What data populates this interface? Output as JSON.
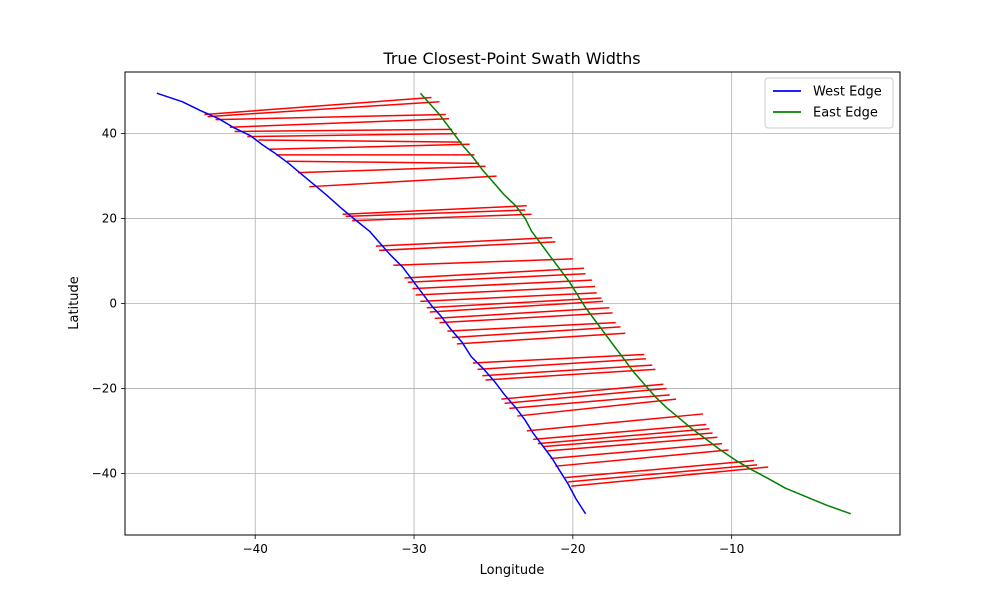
{
  "chart_data": {
    "type": "line",
    "title": "True Closest-Point Swath Widths",
    "xlabel": "Longitude",
    "ylabel": "Latitude",
    "xlim": [
      -48.2,
      0.6
    ],
    "ylim": [
      -54.5,
      54.5
    ],
    "xticks": [
      -40,
      -30,
      -20,
      -10
    ],
    "yticks": [
      -40,
      -20,
      0,
      20,
      40
    ],
    "xtick_labels": [
      "−40",
      "−30",
      "−20",
      "−10"
    ],
    "ytick_labels": [
      "−40",
      "−20",
      "0",
      "20",
      "40"
    ],
    "grid": true,
    "legend_position": "top-right",
    "colors": {
      "west": "#0000ff",
      "east": "#008000",
      "swath": "#ff0000",
      "grid": "#b0b0b0"
    },
    "series": [
      {
        "name": "West Edge",
        "x": [
          -46.2,
          -44.6,
          -43.5,
          -42.3,
          -41.3,
          -40.3,
          -39.6,
          -38.8,
          -37.9,
          -37.2,
          -36.3,
          -35.5,
          -34.6,
          -33.8,
          -32.8,
          -32.1,
          -31.5,
          -30.7,
          -30.1,
          -29.5,
          -28.9,
          -28.3,
          -27.7,
          -27.0,
          -26.4,
          -25.6,
          -24.9,
          -24.3,
          -23.6,
          -23.0,
          -22.5,
          -21.9,
          -21.3,
          -20.8,
          -20.3,
          -19.8,
          -19.2
        ],
        "y": [
          49.5,
          47.5,
          45.5,
          43.5,
          41.3,
          39.5,
          37.5,
          35.5,
          33.0,
          30.8,
          28.0,
          25.5,
          22.5,
          20.0,
          17.0,
          14.0,
          11.5,
          8.5,
          5.5,
          2.5,
          -0.5,
          -3.0,
          -6.0,
          -9.0,
          -12.5,
          -15.5,
          -18.5,
          -21.5,
          -24.5,
          -27.5,
          -30.5,
          -33.5,
          -36.5,
          -39.5,
          -42.5,
          -46.0,
          -49.5
        ]
      },
      {
        "name": "East Edge",
        "x": [
          -29.6,
          -29.0,
          -28.4,
          -27.9,
          -27.4,
          -26.9,
          -26.3,
          -25.7,
          -25.0,
          -24.3,
          -23.6,
          -23.0,
          -22.6,
          -22.0,
          -21.4,
          -20.8,
          -20.2,
          -19.7,
          -19.2,
          -18.6,
          -18.0,
          -17.4,
          -16.8,
          -16.2,
          -15.5,
          -14.8,
          -14.1,
          -13.3,
          -12.5,
          -11.6,
          -10.7,
          -9.7,
          -8.8,
          -7.8,
          -6.6,
          -5.3,
          -4.0,
          -2.5
        ],
        "y": [
          49.5,
          47.0,
          44.5,
          42.0,
          39.5,
          37.0,
          34.5,
          31.5,
          28.5,
          25.5,
          23.0,
          20.0,
          17.0,
          14.0,
          11.0,
          8.0,
          5.0,
          2.0,
          -1.0,
          -4.0,
          -7.0,
          -10.0,
          -13.0,
          -16.0,
          -19.0,
          -22.0,
          -24.5,
          -27.0,
          -29.5,
          -32.0,
          -34.5,
          -37.0,
          -39.0,
          -41.0,
          -43.5,
          -45.5,
          -47.5,
          -49.5
        ]
      }
    ],
    "swaths": [
      [
        -43.2,
        44.5,
        -28.9,
        48.5
      ],
      [
        -43.0,
        44.0,
        -28.4,
        47.5
      ],
      [
        -42.5,
        43.3,
        -28.0,
        44.5
      ],
      [
        -41.6,
        41.5,
        -27.8,
        43.5
      ],
      [
        -41.3,
        40.5,
        -27.6,
        41.0
      ],
      [
        -40.5,
        39.3,
        -27.3,
        40.0
      ],
      [
        -39.8,
        38.5,
        -27.0,
        38.0
      ],
      [
        -39.1,
        36.3,
        -26.5,
        37.5
      ],
      [
        -38.7,
        35.0,
        -26.2,
        35.0
      ],
      [
        -38.0,
        33.5,
        -25.9,
        33.0
      ],
      [
        -37.3,
        30.8,
        -25.5,
        32.3
      ],
      [
        -36.6,
        27.5,
        -24.8,
        30.0
      ],
      [
        -34.5,
        21.0,
        -22.9,
        23.0
      ],
      [
        -34.3,
        20.5,
        -23.0,
        22.0
      ],
      [
        -33.9,
        19.5,
        -22.6,
        21.0
      ],
      [
        -32.4,
        13.5,
        -21.3,
        15.5
      ],
      [
        -32.2,
        12.5,
        -21.1,
        14.5
      ],
      [
        -31.3,
        9.0,
        -20.0,
        10.5
      ],
      [
        -30.6,
        6.0,
        -19.3,
        8.3
      ],
      [
        -30.4,
        5.0,
        -19.2,
        7.0
      ],
      [
        -30.1,
        3.5,
        -18.8,
        5.5
      ],
      [
        -29.9,
        2.0,
        -18.6,
        4.0
      ],
      [
        -29.6,
        0.5,
        -18.5,
        2.5
      ],
      [
        -29.2,
        -1.0,
        -18.2,
        1.3
      ],
      [
        -29.0,
        -2.0,
        -18.1,
        0.5
      ],
      [
        -28.7,
        -3.5,
        -17.7,
        -1.0
      ],
      [
        -28.4,
        -4.5,
        -17.5,
        -2.2
      ],
      [
        -27.9,
        -6.5,
        -17.3,
        -4.5
      ],
      [
        -27.6,
        -8.0,
        -17.0,
        -5.5
      ],
      [
        -27.3,
        -9.5,
        -16.7,
        -7.0
      ],
      [
        -26.3,
        -14.0,
        -15.5,
        -12.0
      ],
      [
        -26.0,
        -15.5,
        -15.4,
        -13.0
      ],
      [
        -25.7,
        -17.0,
        -15.0,
        -14.5
      ],
      [
        -25.5,
        -18.0,
        -14.8,
        -15.5
      ],
      [
        -24.5,
        -22.5,
        -14.3,
        -19.0
      ],
      [
        -24.3,
        -23.5,
        -14.1,
        -20.0
      ],
      [
        -24.0,
        -24.7,
        -13.9,
        -21.5
      ],
      [
        -23.5,
        -26.5,
        -13.5,
        -22.5
      ],
      [
        -22.9,
        -30.0,
        -11.8,
        -26.0
      ],
      [
        -22.5,
        -32.0,
        -11.6,
        -28.5
      ],
      [
        -22.2,
        -33.0,
        -11.4,
        -29.5
      ],
      [
        -21.9,
        -33.7,
        -11.2,
        -30.5
      ],
      [
        -21.6,
        -34.7,
        -10.9,
        -31.5
      ],
      [
        -21.4,
        -36.5,
        -10.6,
        -33.0
      ],
      [
        -21.1,
        -38.3,
        -10.2,
        -34.5
      ],
      [
        -20.5,
        -41.0,
        -8.6,
        -37.0
      ],
      [
        -20.3,
        -42.0,
        -8.4,
        -38.0
      ],
      [
        -20.1,
        -43.0,
        -7.7,
        -38.5
      ]
    ]
  }
}
